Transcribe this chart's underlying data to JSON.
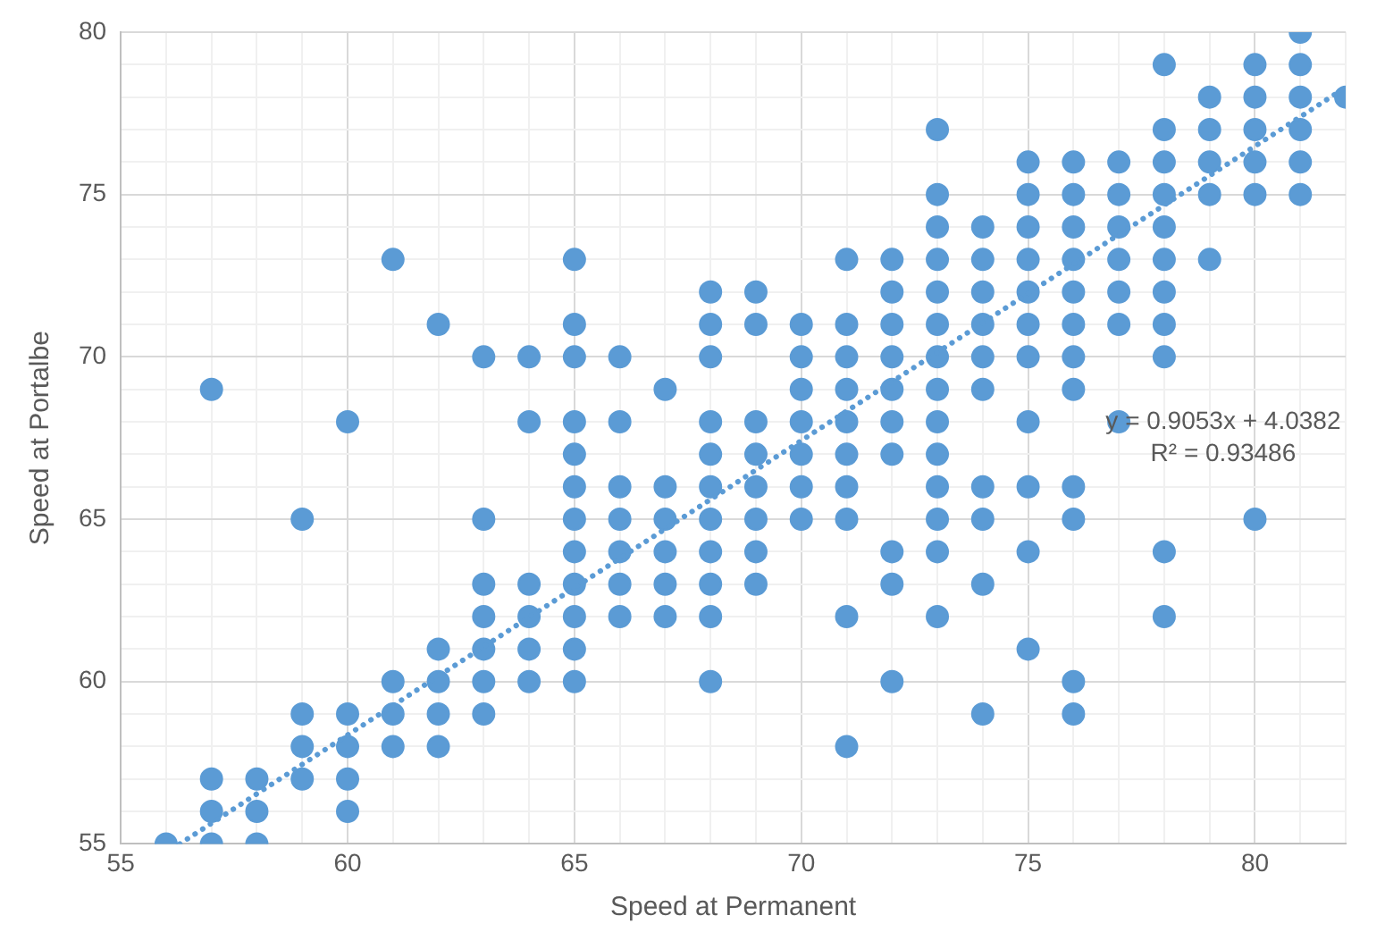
{
  "chart_data": {
    "type": "scatter",
    "xlabel": "Speed at Permanent",
    "ylabel": "Speed at Portalbe",
    "xlim": [
      55,
      82
    ],
    "ylim": [
      55,
      80
    ],
    "xticks": [
      55,
      {
        "value": 56,
        "label": null
      },
      {
        "value": 57,
        "label": null
      },
      {
        "value": 58,
        "label": null
      },
      {
        "value": 59,
        "label": null
      },
      60,
      {
        "value": 61,
        "label": null
      },
      {
        "value": 62,
        "label": null
      },
      {
        "value": 63,
        "label": null
      },
      {
        "value": 64,
        "label": null
      },
      65,
      {
        "value": 66,
        "label": null
      },
      {
        "value": 67,
        "label": null
      },
      {
        "value": 68,
        "label": null
      },
      {
        "value": 69,
        "label": null
      },
      70,
      {
        "value": 71,
        "label": null
      },
      {
        "value": 72,
        "label": null
      },
      {
        "value": 73,
        "label": null
      },
      {
        "value": 74,
        "label": null
      },
      75,
      {
        "value": 76,
        "label": null
      },
      {
        "value": 77,
        "label": null
      },
      {
        "value": 78,
        "label": null
      },
      {
        "value": 79,
        "label": null
      },
      80,
      {
        "value": 81,
        "label": null
      },
      {
        "value": 82,
        "label": null
      }
    ],
    "yticks": [
      55,
      {
        "value": 56,
        "label": null
      },
      {
        "value": 57,
        "label": null
      },
      {
        "value": 58,
        "label": null
      },
      {
        "value": 59,
        "label": null
      },
      60,
      {
        "value": 61,
        "label": null
      },
      {
        "value": 62,
        "label": null
      },
      {
        "value": 63,
        "label": null
      },
      {
        "value": 64,
        "label": null
      },
      65,
      {
        "value": 66,
        "label": null
      },
      {
        "value": 67,
        "label": null
      },
      {
        "value": 68,
        "label": null
      },
      {
        "value": 69,
        "label": null
      },
      70,
      {
        "value": 71,
        "label": null
      },
      {
        "value": 72,
        "label": null
      },
      {
        "value": 73,
        "label": null
      },
      {
        "value": 74,
        "label": null
      },
      75,
      {
        "value": 76,
        "label": null
      },
      {
        "value": 77,
        "label": null
      },
      {
        "value": 78,
        "label": null
      },
      {
        "value": 79,
        "label": null
      },
      80
    ],
    "grid": true,
    "legend": false,
    "marker": "circle",
    "series": [
      {
        "color": "#5b9bd5",
        "x": [
          56,
          57,
          57,
          57,
          57,
          58,
          58,
          58,
          59,
          59,
          59,
          59,
          60,
          60,
          60,
          60,
          60,
          61,
          61,
          61,
          61,
          62,
          62,
          62,
          62,
          62,
          63,
          63,
          63,
          63,
          63,
          63,
          63,
          64,
          64,
          64,
          64,
          64,
          64,
          65,
          65,
          65,
          65,
          65,
          65,
          65,
          65,
          65,
          65,
          65,
          65,
          66,
          66,
          66,
          66,
          66,
          66,
          66,
          67,
          67,
          67,
          67,
          67,
          67,
          68,
          68,
          68,
          68,
          68,
          68,
          68,
          68,
          68,
          68,
          68,
          69,
          69,
          69,
          69,
          69,
          69,
          69,
          69,
          70,
          70,
          70,
          70,
          70,
          70,
          70,
          71,
          71,
          71,
          71,
          71,
          71,
          71,
          71,
          71,
          71,
          72,
          72,
          72,
          72,
          72,
          72,
          72,
          72,
          72,
          72,
          73,
          73,
          73,
          73,
          73,
          73,
          73,
          73,
          73,
          73,
          73,
          73,
          73,
          73,
          74,
          74,
          74,
          74,
          74,
          74,
          74,
          74,
          74,
          74,
          75,
          75,
          75,
          75,
          75,
          75,
          75,
          75,
          75,
          75,
          75,
          76,
          76,
          76,
          76,
          76,
          76,
          76,
          76,
          76,
          76,
          76,
          76,
          77,
          77,
          77,
          77,
          77,
          77,
          77,
          78,
          78,
          78,
          78,
          78,
          78,
          78,
          78,
          78,
          78,
          78,
          79,
          79,
          79,
          79,
          79,
          80,
          80,
          80,
          80,
          80,
          80,
          81,
          81,
          81,
          81,
          81,
          81,
          82
        ],
        "values": [
          55,
          69,
          57,
          56,
          55,
          57,
          56,
          55,
          65,
          59,
          58,
          57,
          68,
          59,
          58,
          57,
          56,
          73,
          60,
          59,
          58,
          71,
          61,
          60,
          59,
          58,
          70,
          65,
          63,
          62,
          61,
          60,
          59,
          70,
          68,
          63,
          62,
          61,
          60,
          73,
          71,
          70,
          68,
          67,
          66,
          65,
          64,
          63,
          62,
          61,
          60,
          70,
          68,
          66,
          65,
          64,
          63,
          62,
          69,
          66,
          65,
          64,
          63,
          62,
          72,
          71,
          70,
          68,
          67,
          66,
          65,
          64,
          63,
          62,
          60,
          72,
          71,
          68,
          67,
          66,
          65,
          64,
          63,
          71,
          70,
          69,
          68,
          67,
          66,
          65,
          73,
          71,
          70,
          69,
          68,
          67,
          66,
          65,
          62,
          58,
          73,
          72,
          71,
          70,
          69,
          68,
          67,
          64,
          63,
          60,
          77,
          75,
          74,
          73,
          72,
          71,
          70,
          69,
          68,
          67,
          66,
          65,
          64,
          62,
          74,
          73,
          72,
          71,
          70,
          69,
          66,
          65,
          63,
          59,
          76,
          75,
          74,
          73,
          72,
          71,
          70,
          68,
          66,
          64,
          61,
          76,
          75,
          74,
          73,
          72,
          71,
          70,
          69,
          66,
          65,
          60,
          59,
          76,
          75,
          74,
          73,
          72,
          71,
          68,
          79,
          77,
          76,
          75,
          74,
          73,
          72,
          71,
          70,
          64,
          62,
          78,
          77,
          76,
          75,
          73,
          79,
          78,
          77,
          76,
          75,
          65,
          80,
          79,
          78,
          77,
          76,
          75,
          78
        ]
      },
      {
        "type": "line",
        "color": "#5b9bd5",
        "line_style": "dotted",
        "marker": "none",
        "x": [
          56.3,
          82
        ],
        "values": [
          55,
          78.3
        ]
      }
    ],
    "annotations": [
      "y = 0.9053x + 4.0382",
      "R² = 0.93486"
    ]
  }
}
